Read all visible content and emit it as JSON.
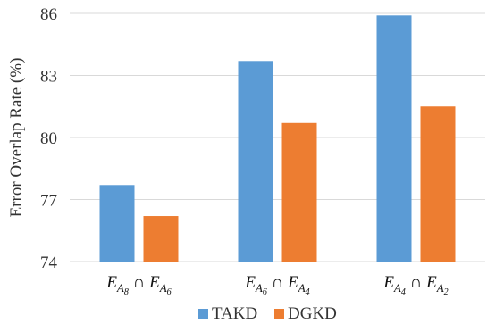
{
  "chart_data": {
    "type": "bar",
    "categories": [
      "E_{A8} ∩ E_{A6}",
      "E_{A6} ∩ E_{A4}",
      "E_{A4} ∩ E_{A2}"
    ],
    "category_parts": [
      {
        "e1": "E",
        "s1a": "A",
        "s1b": "8",
        "cap": "∩",
        "e2": "E",
        "s2a": "A",
        "s2b": "6"
      },
      {
        "e1": "E",
        "s1a": "A",
        "s1b": "6",
        "cap": "∩",
        "e2": "E",
        "s2a": "A",
        "s2b": "4"
      },
      {
        "e1": "E",
        "s1a": "A",
        "s1b": "4",
        "cap": "∩",
        "e2": "E",
        "s2a": "A",
        "s2b": "2"
      }
    ],
    "series": [
      {
        "name": "TAKD",
        "color": "#5b9bd5",
        "values": [
          77.7,
          83.7,
          85.9
        ]
      },
      {
        "name": "DGKD",
        "color": "#ed7d31",
        "values": [
          76.2,
          80.7,
          81.5
        ]
      }
    ],
    "ylabel": "Error Overlap Rate (%)",
    "ylim": [
      74,
      86
    ],
    "yticks": [
      "74",
      "77",
      "80",
      "83",
      "86"
    ],
    "grid": true,
    "legend_position": "bottom"
  }
}
